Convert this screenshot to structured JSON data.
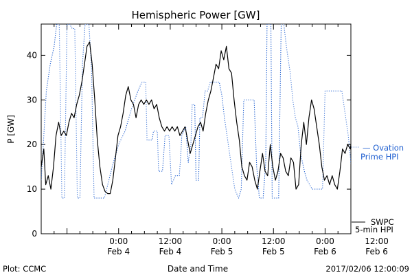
{
  "chart_data": {
    "type": "line",
    "title": "Hemispheric Power [GW]",
    "xlabel": "Date and Time",
    "ylabel": "P [GW]",
    "ylim": [
      0,
      47
    ],
    "xlim_hours": [
      -12,
      36
    ],
    "y_ticks": [
      0,
      10,
      20,
      30,
      40
    ],
    "x_ticks": [
      {
        "hour": 0,
        "label": "0:00",
        "sublabel": "Feb 4"
      },
      {
        "hour": 8,
        "label": "12:00",
        "sublabel": "Feb 4"
      },
      {
        "hour": 16,
        "label": "0:00",
        "sublabel": "Feb 5"
      },
      {
        "hour": 24,
        "label": "12:00",
        "sublabel": "Feb 5"
      },
      {
        "hour": 32,
        "label": "0:00",
        "sublabel": "Feb 6"
      },
      {
        "hour": 40,
        "label": "12:00",
        "sublabel": "Feb 6"
      }
    ],
    "grid": false,
    "series": [
      {
        "name": "SWPC 5-min HPI",
        "style": "solid",
        "color": "#000000",
        "points": [
          [
            -12.0,
            15
          ],
          [
            -11.6,
            19
          ],
          [
            -11.3,
            11
          ],
          [
            -10.9,
            13
          ],
          [
            -10.5,
            10
          ],
          [
            -10.1,
            15
          ],
          [
            -9.7,
            22
          ],
          [
            -9.3,
            25
          ],
          [
            -8.9,
            22
          ],
          [
            -8.5,
            23
          ],
          [
            -8.1,
            22
          ],
          [
            -7.7,
            25
          ],
          [
            -7.3,
            27
          ],
          [
            -6.9,
            26
          ],
          [
            -6.5,
            29
          ],
          [
            -6.1,
            31
          ],
          [
            -5.7,
            34
          ],
          [
            -5.3,
            38
          ],
          [
            -4.9,
            42
          ],
          [
            -4.5,
            43
          ],
          [
            -4.1,
            38
          ],
          [
            -3.7,
            30
          ],
          [
            -3.3,
            21
          ],
          [
            -2.9,
            15
          ],
          [
            -2.5,
            11
          ],
          [
            -2.1,
            9.5
          ],
          [
            -1.7,
            9
          ],
          [
            -1.3,
            9
          ],
          [
            -0.9,
            12
          ],
          [
            -0.5,
            17
          ],
          [
            -0.1,
            22
          ],
          [
            0.3,
            24
          ],
          [
            0.7,
            27
          ],
          [
            1.1,
            31
          ],
          [
            1.5,
            33
          ],
          [
            1.9,
            30
          ],
          [
            2.3,
            29
          ],
          [
            2.7,
            26
          ],
          [
            3.1,
            29
          ],
          [
            3.5,
            30
          ],
          [
            3.9,
            29
          ],
          [
            4.3,
            30
          ],
          [
            4.7,
            29
          ],
          [
            5.1,
            30
          ],
          [
            5.5,
            28
          ],
          [
            5.9,
            29
          ],
          [
            6.3,
            26
          ],
          [
            6.7,
            24
          ],
          [
            7.1,
            23
          ],
          [
            7.5,
            24
          ],
          [
            7.9,
            23
          ],
          [
            8.3,
            24
          ],
          [
            8.7,
            23
          ],
          [
            9.1,
            24
          ],
          [
            9.5,
            22
          ],
          [
            9.9,
            23
          ],
          [
            10.3,
            24
          ],
          [
            10.7,
            21
          ],
          [
            11.1,
            18
          ],
          [
            11.5,
            20
          ],
          [
            11.9,
            22
          ],
          [
            12.3,
            24
          ],
          [
            12.7,
            25
          ],
          [
            13.1,
            23
          ],
          [
            13.5,
            27
          ],
          [
            13.9,
            30
          ],
          [
            14.3,
            32
          ],
          [
            14.7,
            35
          ],
          [
            15.1,
            38
          ],
          [
            15.5,
            37
          ],
          [
            15.9,
            41
          ],
          [
            16.3,
            39
          ],
          [
            16.7,
            42
          ],
          [
            17.1,
            37
          ],
          [
            17.5,
            36
          ],
          [
            17.9,
            30
          ],
          [
            18.3,
            25
          ],
          [
            18.7,
            21
          ],
          [
            19.1,
            15
          ],
          [
            19.5,
            13
          ],
          [
            19.9,
            12
          ],
          [
            20.3,
            16
          ],
          [
            20.7,
            15
          ],
          [
            21.1,
            12
          ],
          [
            21.5,
            10
          ],
          [
            21.9,
            14
          ],
          [
            22.3,
            18
          ],
          [
            22.7,
            14
          ],
          [
            23.1,
            13
          ],
          [
            23.5,
            20
          ],
          [
            23.9,
            15
          ],
          [
            24.3,
            12
          ],
          [
            24.7,
            14
          ],
          [
            25.1,
            18
          ],
          [
            25.5,
            17
          ],
          [
            25.9,
            14
          ],
          [
            26.3,
            13
          ],
          [
            26.7,
            17
          ],
          [
            27.1,
            16
          ],
          [
            27.5,
            10
          ],
          [
            27.9,
            11
          ],
          [
            28.3,
            20
          ],
          [
            28.7,
            25
          ],
          [
            29.1,
            20
          ],
          [
            29.5,
            26
          ],
          [
            29.9,
            30
          ],
          [
            30.3,
            28
          ],
          [
            30.7,
            24
          ],
          [
            31.1,
            20
          ],
          [
            31.5,
            15
          ],
          [
            31.9,
            12
          ],
          [
            32.3,
            13
          ],
          [
            32.7,
            11
          ],
          [
            33.1,
            13
          ],
          [
            33.5,
            11
          ],
          [
            33.9,
            10
          ],
          [
            34.3,
            14
          ],
          [
            34.7,
            19
          ],
          [
            35.1,
            18
          ],
          [
            35.5,
            20
          ],
          [
            35.9,
            19
          ],
          [
            36.3,
            23
          ],
          [
            36.7,
            21
          ],
          [
            37.1,
            18
          ],
          [
            37.5,
            16
          ],
          [
            37.9,
            14
          ],
          [
            38.3,
            17
          ],
          [
            38.7,
            12
          ],
          [
            39.1,
            15
          ],
          [
            39.5,
            11
          ],
          [
            39.9,
            10
          ],
          [
            40.3,
            11
          ],
          [
            40.7,
            11
          ],
          [
            41.1,
            10
          ],
          [
            41.5,
            12
          ],
          [
            42.0,
            11
          ]
        ]
      },
      {
        "name": "Ovation Prime HPI",
        "style": "dotted",
        "color": "#1f5fd0",
        "points": [
          [
            -12.0,
            12
          ],
          [
            -11.6,
            22
          ],
          [
            -11.2,
            32
          ],
          [
            -10.6,
            38
          ],
          [
            -10.0,
            42
          ],
          [
            -9.6,
            47
          ],
          [
            -9.2,
            47
          ],
          [
            -8.8,
            8
          ],
          [
            -8.4,
            8
          ],
          [
            -8.0,
            47
          ],
          [
            -7.6,
            47
          ],
          [
            -7.2,
            46
          ],
          [
            -6.8,
            46
          ],
          [
            -6.4,
            8
          ],
          [
            -6.0,
            8
          ],
          [
            -5.6,
            38
          ],
          [
            -5.2,
            47
          ],
          [
            -4.6,
            47
          ],
          [
            -4.2,
            37
          ],
          [
            -3.8,
            8
          ],
          [
            -2.2,
            8
          ],
          [
            -1.0,
            15
          ],
          [
            0.0,
            20
          ],
          [
            1.0,
            23
          ],
          [
            2.0,
            28
          ],
          [
            3.0,
            32
          ],
          [
            3.6,
            34
          ],
          [
            4.2,
            34
          ],
          [
            4.4,
            21
          ],
          [
            5.2,
            21
          ],
          [
            5.4,
            23
          ],
          [
            6.0,
            23
          ],
          [
            6.2,
            14
          ],
          [
            6.8,
            14
          ],
          [
            7.2,
            22
          ],
          [
            7.8,
            22
          ],
          [
            8.2,
            11
          ],
          [
            8.8,
            13
          ],
          [
            9.4,
            13
          ],
          [
            9.6,
            17
          ],
          [
            9.8,
            22
          ],
          [
            10.4,
            24
          ],
          [
            10.8,
            16
          ],
          [
            11.2,
            20
          ],
          [
            11.4,
            29
          ],
          [
            11.8,
            29
          ],
          [
            12.0,
            12
          ],
          [
            12.4,
            12
          ],
          [
            12.6,
            26
          ],
          [
            13.0,
            26
          ],
          [
            13.4,
            32
          ],
          [
            13.8,
            32
          ],
          [
            14.2,
            34
          ],
          [
            15.0,
            34
          ],
          [
            15.6,
            34
          ],
          [
            16.0,
            31
          ],
          [
            16.4,
            26
          ],
          [
            16.8,
            22
          ],
          [
            17.4,
            16
          ],
          [
            18.0,
            10
          ],
          [
            18.6,
            8
          ],
          [
            19.0,
            10
          ],
          [
            19.4,
            30
          ],
          [
            20.0,
            30
          ],
          [
            20.6,
            30
          ],
          [
            21.0,
            30
          ],
          [
            21.4,
            15
          ],
          [
            21.6,
            12
          ],
          [
            21.8,
            8
          ],
          [
            22.4,
            8
          ],
          [
            22.6,
            12
          ],
          [
            22.8,
            16
          ],
          [
            23.0,
            47
          ],
          [
            23.6,
            47
          ],
          [
            23.8,
            8
          ],
          [
            24.4,
            8
          ],
          [
            24.8,
            8
          ],
          [
            25.2,
            47
          ],
          [
            25.6,
            47
          ],
          [
            26.0,
            42
          ],
          [
            26.6,
            36
          ],
          [
            27.0,
            30
          ],
          [
            27.4,
            26
          ],
          [
            27.8,
            24
          ],
          [
            28.2,
            18
          ],
          [
            28.8,
            14
          ],
          [
            29.2,
            12
          ],
          [
            29.6,
            11
          ],
          [
            30.0,
            10
          ],
          [
            30.4,
            10
          ],
          [
            30.8,
            10
          ],
          [
            31.6,
            10
          ],
          [
            32.0,
            32
          ],
          [
            33.0,
            32
          ],
          [
            34.0,
            32
          ],
          [
            34.6,
            32
          ],
          [
            35.0,
            28
          ],
          [
            35.6,
            22
          ],
          [
            36.0,
            16
          ],
          [
            36.6,
            12
          ],
          [
            37.0,
            8
          ],
          [
            37.8,
            8
          ],
          [
            38.2,
            11
          ],
          [
            38.4,
            17
          ],
          [
            38.8,
            19
          ],
          [
            39.2,
            19
          ],
          [
            39.6,
            19
          ],
          [
            40.0,
            12
          ],
          [
            40.4,
            10
          ]
        ]
      }
    ]
  },
  "legend": [
    {
      "label_line1": "— Ovation",
      "label_line2": "Prime HPI",
      "color": "#1f5fd0",
      "style": "dotted"
    },
    {
      "label_line1": "SWPC",
      "label_line2": "5-min HPI",
      "color": "#000000",
      "style": "solid"
    }
  ],
  "footer": {
    "left": "Plot: CCMC",
    "right": "2017/02/06 12:00:09"
  }
}
